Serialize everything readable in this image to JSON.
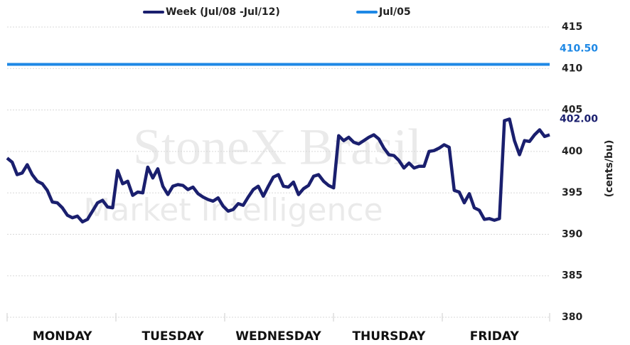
{
  "chart_data": {
    "type": "line",
    "y_label": "(cents/bu)",
    "watermark": [
      "StoneX Brasil",
      "Market Intelligence"
    ],
    "categories": [
      null,
      null,
      null,
      null,
      null,
      null,
      null,
      null,
      null,
      null,
      null,
      "MONDAY",
      null,
      null,
      null,
      null,
      null,
      null,
      null,
      null,
      null,
      null,
      null,
      null,
      null,
      null,
      null,
      null,
      null,
      null,
      null,
      null,
      null,
      "TUESDAY",
      null,
      null,
      null,
      null,
      null,
      null,
      null,
      null,
      null,
      null,
      null,
      null,
      null,
      null,
      null,
      null,
      null,
      null,
      null,
      null,
      "WEDNESDAY",
      null,
      null,
      null,
      null,
      null,
      null,
      null,
      null,
      null,
      null,
      null,
      null,
      null,
      null,
      null,
      null,
      null,
      null,
      null,
      null,
      null,
      "THURSDAY",
      null,
      null,
      null,
      null,
      null,
      null,
      null,
      null,
      null,
      null,
      null,
      null,
      null,
      null,
      null,
      null,
      null,
      null,
      null,
      null,
      "FRIDAY",
      null,
      null,
      null,
      null,
      null,
      null,
      null,
      null,
      null,
      null,
      null
    ],
    "series": [
      {
        "name": "Week (Jul/08 -Jul/12)",
        "color": "#1a1f6e",
        "end_label": "402.00",
        "values": [
          399.2,
          398.7,
          397.2,
          397.4,
          398.4,
          397.2,
          396.4,
          396.1,
          395.3,
          393.9,
          393.8,
          393.2,
          392.3,
          392.0,
          392.2,
          391.5,
          391.8,
          392.8,
          393.8,
          394.1,
          393.3,
          393.2,
          397.7,
          396.1,
          396.4,
          394.7,
          395.1,
          395.0,
          398.1,
          396.8,
          397.9,
          395.8,
          394.8,
          395.8,
          396.0,
          395.9,
          395.4,
          395.7,
          394.9,
          394.5,
          394.2,
          394.0,
          394.4,
          393.4,
          392.8,
          393.0,
          393.7,
          393.5,
          394.5,
          395.4,
          395.8,
          394.6,
          395.8,
          396.9,
          397.2,
          395.8,
          395.7,
          396.3,
          394.8,
          395.5,
          395.9,
          397.0,
          397.2,
          396.4,
          395.9,
          395.6,
          401.9,
          401.3,
          401.7,
          401.1,
          400.9,
          401.3,
          401.7,
          402.0,
          401.5,
          400.4,
          399.6,
          399.5,
          398.9,
          398.0,
          398.6,
          398.0,
          398.2,
          398.2,
          400.0,
          400.1,
          400.4,
          400.8,
          400.5,
          395.3,
          395.1,
          393.8,
          394.9,
          393.2,
          392.9,
          391.8,
          391.9,
          391.7,
          391.9,
          403.7,
          403.9,
          401.3,
          399.6,
          401.3,
          401.2,
          402.0,
          402.6,
          401.8,
          402.0
        ]
      },
      {
        "name": "Jul/05",
        "color": "#1e88e5",
        "end_label": "410.50",
        "values": [
          410.5,
          410.5,
          410.5,
          410.5,
          410.5,
          410.5,
          410.5,
          410.5,
          410.5,
          410.5,
          410.5,
          410.5,
          410.5,
          410.5,
          410.5,
          410.5,
          410.5,
          410.5,
          410.5,
          410.5,
          410.5,
          410.5,
          410.5,
          410.5,
          410.5,
          410.5,
          410.5,
          410.5,
          410.5,
          410.5,
          410.5,
          410.5,
          410.5,
          410.5,
          410.5,
          410.5,
          410.5,
          410.5,
          410.5,
          410.5,
          410.5,
          410.5,
          410.5,
          410.5,
          410.5,
          410.5,
          410.5,
          410.5,
          410.5,
          410.5,
          410.5,
          410.5,
          410.5,
          410.5,
          410.5,
          410.5,
          410.5,
          410.5,
          410.5,
          410.5,
          410.5,
          410.5,
          410.5,
          410.5,
          410.5,
          410.5,
          410.5,
          410.5,
          410.5,
          410.5,
          410.5,
          410.5,
          410.5,
          410.5,
          410.5,
          410.5,
          410.5,
          410.5,
          410.5,
          410.5,
          410.5,
          410.5,
          410.5,
          410.5,
          410.5,
          410.5,
          410.5,
          410.5,
          410.5,
          410.5,
          410.5,
          410.5,
          410.5,
          410.5,
          410.5,
          410.5,
          410.5,
          410.5,
          410.5,
          410.5,
          410.5,
          410.5,
          410.5,
          410.5,
          410.5,
          410.5,
          410.5,
          410.5,
          410.5
        ]
      }
    ],
    "ylim": [
      380,
      415
    ],
    "yticks": [
      380,
      385,
      390,
      395,
      400,
      405,
      410,
      415
    ],
    "grid": true
  }
}
